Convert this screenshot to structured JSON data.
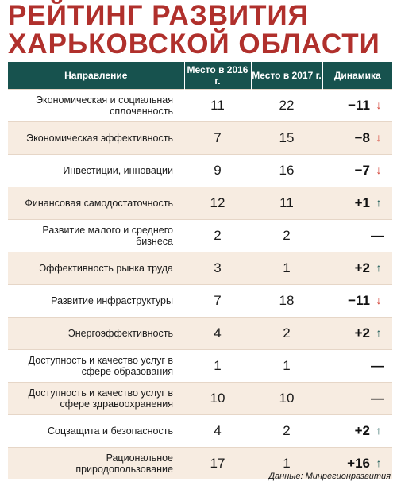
{
  "title_line1": "Рейтинг развития",
  "title_line2": "Харьковской области",
  "colors": {
    "title": "#b0302c",
    "header_bg": "#17524e",
    "stripe": "#f7ece1",
    "down": "#d1392c",
    "up": "#1d5c57"
  },
  "table": {
    "headers": {
      "direction": "Направление",
      "place2016": "Место в 2016 г.",
      "place2017": "Место в 2017 г.",
      "dynamics": "Динамика"
    },
    "rows": [
      {
        "direction": "Экономическая и социальная сплоченность",
        "y2016": "11",
        "y2017": "22",
        "change": "−11",
        "trend": "down",
        "trend_icon": "arrow-down-icon"
      },
      {
        "direction": "Экономическая эффективность",
        "y2016": "7",
        "y2017": "15",
        "change": "−8",
        "trend": "down",
        "trend_icon": "arrow-down-icon"
      },
      {
        "direction": "Инвестиции, инновации",
        "y2016": "9",
        "y2017": "16",
        "change": "−7",
        "trend": "down",
        "trend_icon": "arrow-down-icon"
      },
      {
        "direction": "Финансовая самодостаточность",
        "y2016": "12",
        "y2017": "11",
        "change": "+1",
        "trend": "up",
        "trend_icon": "arrow-up-icon"
      },
      {
        "direction": "Развитие малого и среднего бизнеса",
        "y2016": "2",
        "y2017": "2",
        "change": "—",
        "trend": "none",
        "trend_icon": ""
      },
      {
        "direction": "Эффективность рынка труда",
        "y2016": "3",
        "y2017": "1",
        "change": "+2",
        "trend": "up",
        "trend_icon": "arrow-up-icon"
      },
      {
        "direction": "Развитие инфраструктуры",
        "y2016": "7",
        "y2017": "18",
        "change": "−11",
        "trend": "down",
        "trend_icon": "arrow-down-icon"
      },
      {
        "direction": "Энергоэффективность",
        "y2016": "4",
        "y2017": "2",
        "change": "+2",
        "trend": "up",
        "trend_icon": "arrow-up-icon"
      },
      {
        "direction": "Доступность и качество услуг в сфере образования",
        "y2016": "1",
        "y2017": "1",
        "change": "—",
        "trend": "none",
        "trend_icon": ""
      },
      {
        "direction": "Доступность и качество услуг в сфере здравоохранения",
        "y2016": "10",
        "y2017": "10",
        "change": "—",
        "trend": "none",
        "trend_icon": ""
      },
      {
        "direction": "Соцзащита и безопасность",
        "y2016": "4",
        "y2017": "2",
        "change": "+2",
        "trend": "up",
        "trend_icon": "arrow-up-icon"
      },
      {
        "direction": "Рациональное природопользование",
        "y2016": "17",
        "y2017": "1",
        "change": "+16",
        "trend": "up",
        "trend_icon": "arrow-up-icon"
      }
    ]
  },
  "source": "Данные: Минрегионразвития"
}
